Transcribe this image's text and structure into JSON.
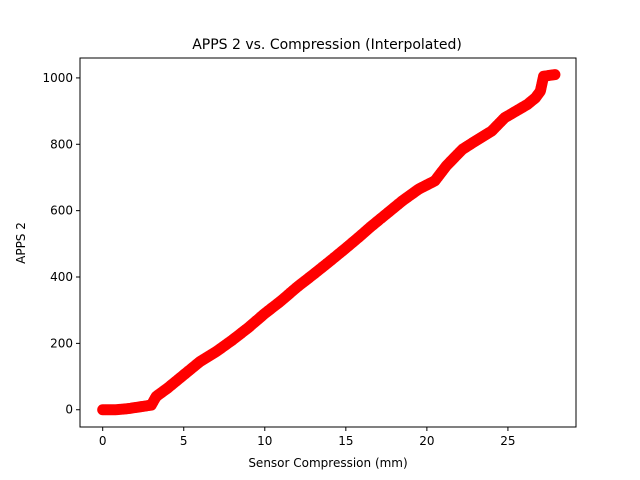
{
  "chart_data": {
    "type": "scatter",
    "title": "APPS 2 vs. Compression (Interpolated)",
    "xlabel": "Sensor Compression (mm)",
    "ylabel": "APPS 2",
    "xlim": [
      -1.4,
      29.2
    ],
    "ylim": [
      -52,
      1060
    ],
    "xticks": [
      0,
      5,
      10,
      15,
      20,
      25
    ],
    "yticks": [
      0,
      200,
      400,
      600,
      800,
      1000
    ],
    "grid": false,
    "marker_color": "#ff0000",
    "series": [
      {
        "anchors": [
          [
            0.0,
            0
          ],
          [
            0.8,
            0
          ],
          [
            1.5,
            3
          ],
          [
            2.2,
            8
          ],
          [
            3.0,
            14
          ],
          [
            3.3,
            40
          ],
          [
            4.0,
            65
          ],
          [
            5.0,
            105
          ],
          [
            6.0,
            145
          ],
          [
            7.0,
            175
          ],
          [
            8.0,
            210
          ],
          [
            9.0,
            248
          ],
          [
            10.0,
            290
          ],
          [
            11.0,
            328
          ],
          [
            12.0,
            370
          ],
          [
            13.0,
            408
          ],
          [
            14.0,
            447
          ],
          [
            15.0,
            487
          ],
          [
            15.8,
            520
          ],
          [
            16.5,
            550
          ],
          [
            17.5,
            590
          ],
          [
            18.5,
            630
          ],
          [
            19.5,
            665
          ],
          [
            20.5,
            690
          ],
          [
            21.2,
            735
          ],
          [
            22.2,
            785
          ],
          [
            23.0,
            810
          ],
          [
            24.0,
            840
          ],
          [
            24.8,
            880
          ],
          [
            25.5,
            900
          ],
          [
            26.2,
            920
          ],
          [
            26.7,
            940
          ],
          [
            27.0,
            960
          ],
          [
            27.2,
            1005
          ],
          [
            27.9,
            1010
          ]
        ]
      }
    ]
  }
}
